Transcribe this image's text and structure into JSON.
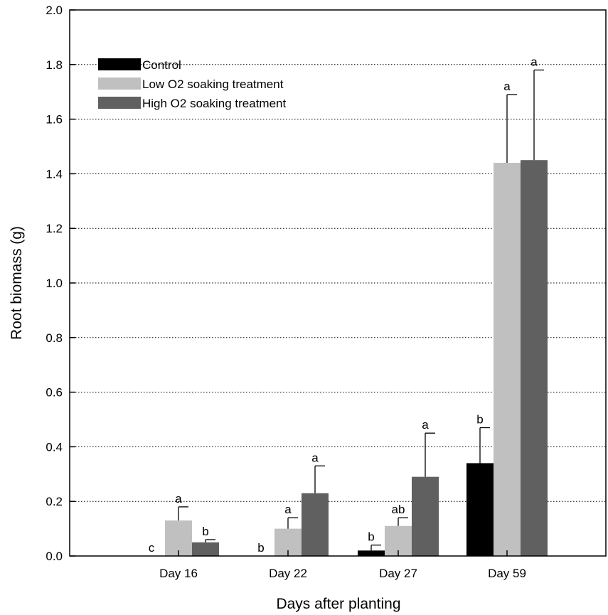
{
  "chart_data": {
    "type": "bar",
    "title": "",
    "xlabel": "Days after planting",
    "ylabel": "Root biomass (g)",
    "ylim": [
      0,
      2.0
    ],
    "yticks": [
      "0.0",
      "0.2",
      "0.4",
      "0.6",
      "0.8",
      "1.0",
      "1.2",
      "1.4",
      "1.6",
      "1.8",
      "2.0"
    ],
    "grid": "horizontal dotted",
    "legend_position": "top-left",
    "categories": [
      "Day 16",
      "Day 22",
      "Day 27",
      "Day 59"
    ],
    "series": [
      {
        "name": "Control",
        "color": "#000000",
        "values": [
          0,
          0,
          0.02,
          0.34
        ],
        "errors": [
          0,
          0,
          0.02,
          0.13
        ],
        "labels": [
          "c",
          "b",
          "b",
          "b"
        ]
      },
      {
        "name": "Low O2 soaking treatment",
        "color": "#c0c0c0",
        "values": [
          0.13,
          0.1,
          0.11,
          1.44
        ],
        "errors": [
          0.05,
          0.04,
          0.03,
          0.25
        ],
        "labels": [
          "a",
          "a",
          "ab",
          "a"
        ]
      },
      {
        "name": "High O2 soaking treatment",
        "color": "#606060",
        "values": [
          0.05,
          0.23,
          0.29,
          1.45
        ],
        "errors": [
          0.01,
          0.1,
          0.16,
          0.33
        ],
        "labels": [
          "b",
          "a",
          "a",
          "a"
        ]
      }
    ]
  }
}
